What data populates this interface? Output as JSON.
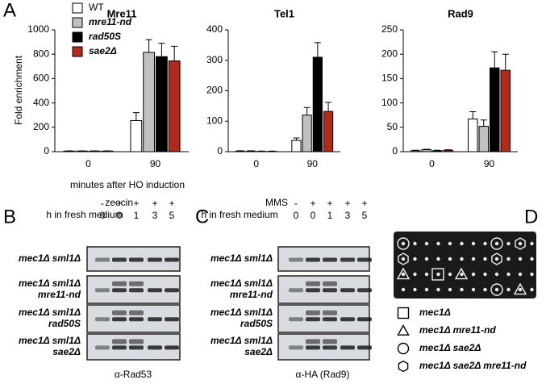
{
  "panel_labels": [
    "A",
    "B",
    "C",
    "D"
  ],
  "chart_data": [
    {
      "type": "bar",
      "title": "Mre11",
      "y_label": "Fold enrichment",
      "x_label": "minutes after HO induction",
      "categories": [
        "0",
        "90"
      ],
      "ylim": [
        0,
        1000
      ],
      "yticks": [
        0,
        200,
        400,
        600,
        800,
        1000
      ],
      "series": [
        {
          "name": "WT",
          "color": "#ffffff",
          "values": [
            5,
            255
          ],
          "errors": [
            2,
            65
          ]
        },
        {
          "name": "mre11-nd",
          "color": "#c0c0c0",
          "values": [
            5,
            815
          ],
          "errors": [
            2,
            105
          ]
        },
        {
          "name": "rad50S",
          "color": "#000000",
          "values": [
            5,
            780
          ],
          "errors": [
            2,
            110
          ]
        },
        {
          "name": "sae2Δ",
          "color": "#b22a1a",
          "values": [
            5,
            745
          ],
          "errors": [
            2,
            120
          ]
        }
      ]
    },
    {
      "type": "bar",
      "title": "Tel1",
      "categories": [
        "0",
        "90"
      ],
      "ylim": [
        0,
        400
      ],
      "yticks": [
        0,
        100,
        200,
        300,
        400
      ],
      "series": [
        {
          "color": "#ffffff",
          "values": [
            2,
            37
          ],
          "errors": [
            1,
            8
          ]
        },
        {
          "color": "#c0c0c0",
          "values": [
            2,
            120
          ],
          "errors": [
            1,
            25
          ]
        },
        {
          "color": "#000000",
          "values": [
            1,
            310
          ],
          "errors": [
            1,
            48
          ]
        },
        {
          "color": "#b22a1a",
          "values": [
            1,
            132
          ],
          "errors": [
            1,
            30
          ]
        }
      ]
    },
    {
      "type": "bar",
      "title": "Rad9",
      "categories": [
        "0",
        "90"
      ],
      "ylim": [
        0,
        250
      ],
      "yticks": [
        0,
        50,
        100,
        150,
        200,
        250
      ],
      "series": [
        {
          "color": "#ffffff",
          "values": [
            2,
            67
          ],
          "errors": [
            1,
            15
          ]
        },
        {
          "color": "#c0c0c0",
          "values": [
            4,
            52
          ],
          "errors": [
            1,
            13
          ]
        },
        {
          "color": "#000000",
          "values": [
            2,
            172
          ],
          "errors": [
            1,
            33
          ]
        },
        {
          "color": "#b22a1a",
          "values": [
            3,
            167
          ],
          "errors": [
            1,
            33
          ]
        }
      ]
    }
  ],
  "blots": [
    {
      "treatment": "zeocin",
      "signs": [
        "-",
        "+",
        "+",
        "+",
        "+"
      ],
      "time_label": "h in fresh medium",
      "times": [
        "0",
        "0",
        "1",
        "3",
        "5"
      ],
      "strains": [
        [
          "mec1Δ sml1Δ"
        ],
        [
          "mec1Δ sml1Δ",
          "mre11-nd"
        ],
        [
          "mec1Δ sml1Δ",
          "rad50S"
        ],
        [
          "mec1Δ sml1Δ",
          "sae2Δ"
        ]
      ],
      "antibody": "α-Rad53"
    },
    {
      "treatment": "MMS",
      "signs": [
        "-",
        "+",
        "+",
        "+",
        "+"
      ],
      "time_label": "h in fresh medium",
      "times": [
        "0",
        "0",
        "1",
        "3",
        "5"
      ],
      "strains": [
        [
          "mec1Δ sml1Δ"
        ],
        [
          "mec1Δ sml1Δ",
          "mre11-nd"
        ],
        [
          "mec1Δ sml1Δ",
          "rad50S"
        ],
        [
          "mec1Δ sml1Δ",
          "sae2Δ"
        ]
      ],
      "antibody": "α-HA (Rad9)"
    }
  ],
  "plate_legend": [
    "mec1Δ",
    "mec1Δ mre11-nd",
    "mec1Δ sae2Δ",
    "mec1Δ sae2Δ mre11-nd"
  ]
}
